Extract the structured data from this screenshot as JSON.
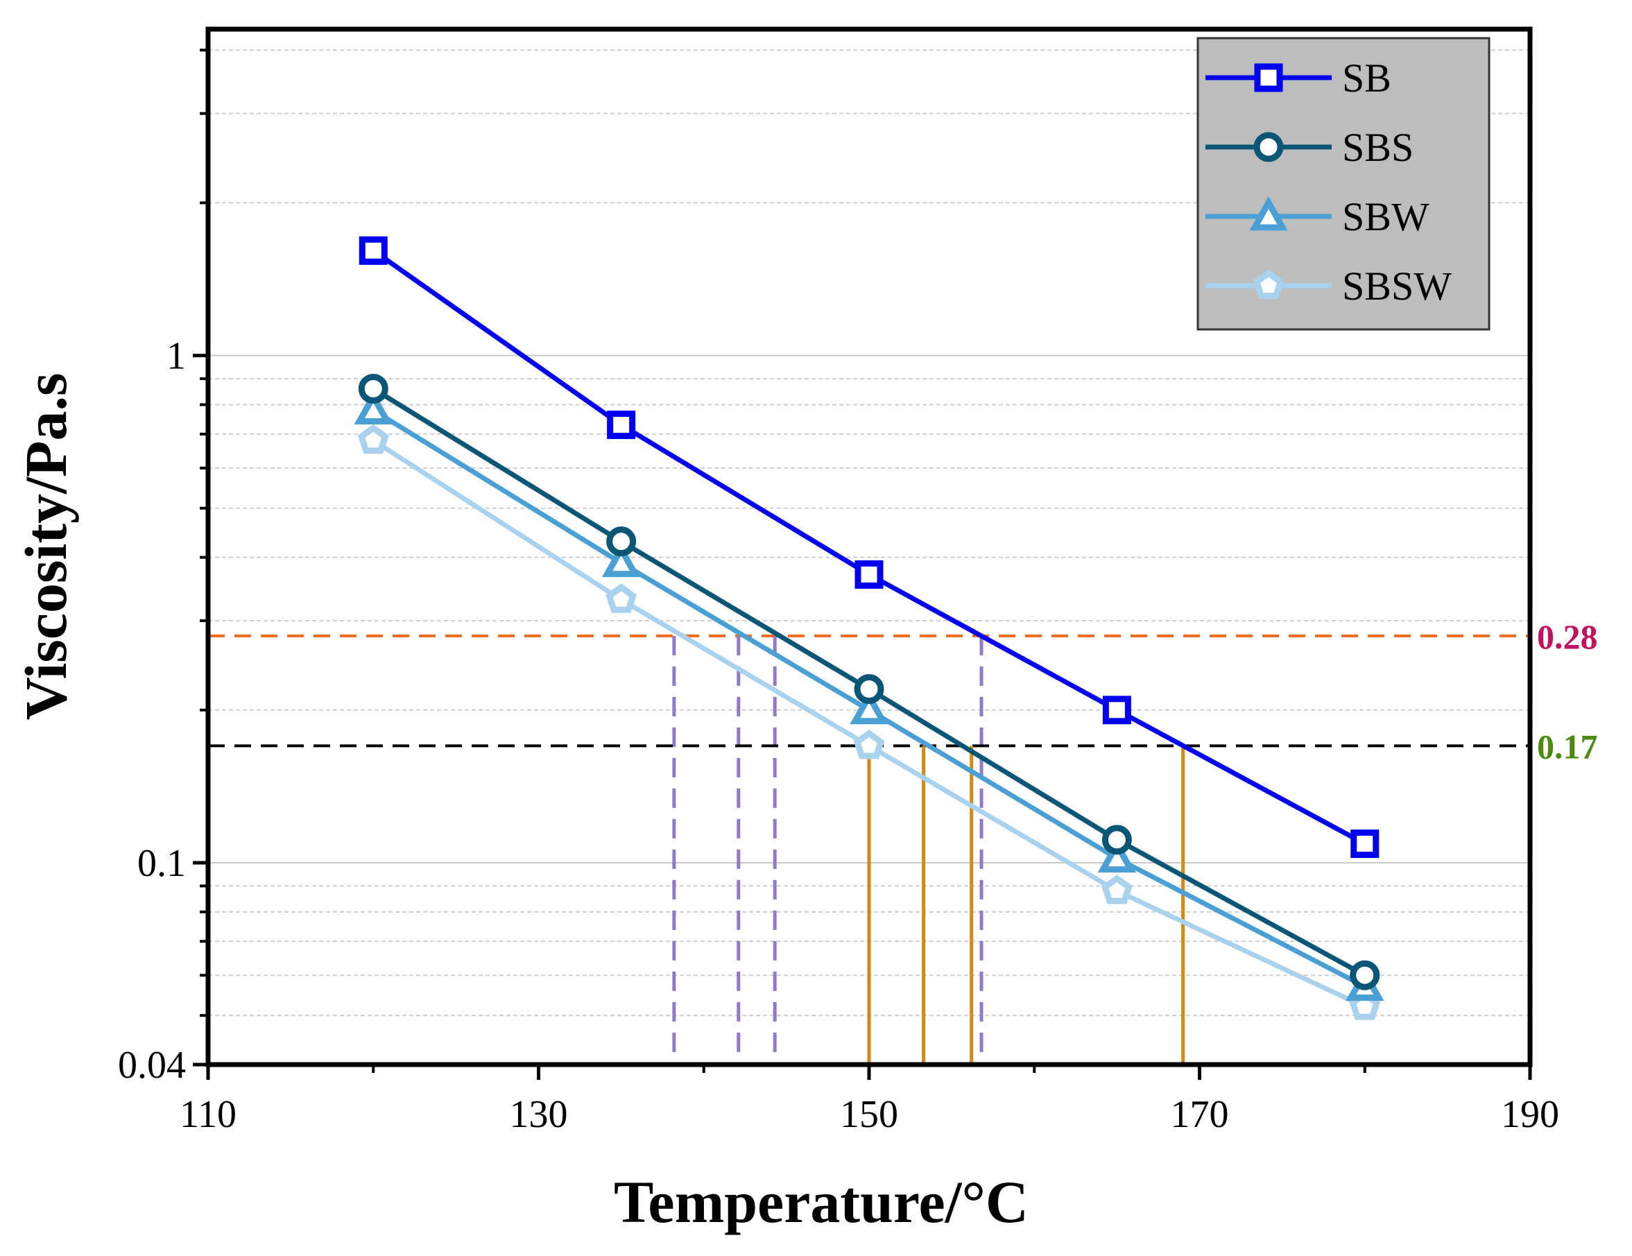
{
  "chart_data": {
    "type": "line",
    "title": "",
    "xlabel": "Temperature/°C",
    "ylabel": "Viscosity/Pa.s",
    "xlim": [
      110,
      190
    ],
    "ylim": [
      0.04,
      4.4
    ],
    "yscale": "log",
    "x_ticks": [
      110,
      130,
      150,
      170,
      190
    ],
    "x_tick_labels": [
      "110",
      "130",
      "150",
      "170",
      "190"
    ],
    "y_ticks": [
      0.04,
      0.1,
      1
    ],
    "y_tick_labels": [
      "0.04",
      "0.1",
      "1"
    ],
    "grid": "horizontal dashed minor gridlines, solid at decades",
    "legend_position": "top-right",
    "x": [
      120,
      135,
      150,
      165,
      180
    ],
    "series": [
      {
        "name": "SB",
        "color": "#0000ee",
        "marker": "square",
        "values": [
          1.61,
          0.73,
          0.37,
          0.2,
          0.109
        ]
      },
      {
        "name": "SBS",
        "color": "#0b5577",
        "marker": "circle",
        "values": [
          0.86,
          0.43,
          0.22,
          0.111,
          0.06
        ]
      },
      {
        "name": "SBW",
        "color": "#4a9fd5",
        "marker": "triangle",
        "values": [
          0.78,
          0.39,
          0.2,
          0.102,
          0.057
        ]
      },
      {
        "name": "SBSW",
        "color": "#a9d2ee",
        "marker": "pentagon",
        "values": [
          0.68,
          0.33,
          0.17,
          0.088,
          0.052
        ]
      }
    ],
    "reference_lines": [
      {
        "label": "0.28",
        "value": 0.28,
        "color": "#ee6a1f",
        "label_color": "#c0155e",
        "drops": [
          138.2,
          142.1,
          144.3,
          156.8
        ],
        "drop_color": "#8f7ac9"
      },
      {
        "label": "0.17",
        "value": 0.17,
        "color": "#000000",
        "label_color": "#4f8a10",
        "drops": [
          150,
          153.3,
          156.2,
          169
        ],
        "drop_color": "#d08a1a"
      }
    ]
  }
}
